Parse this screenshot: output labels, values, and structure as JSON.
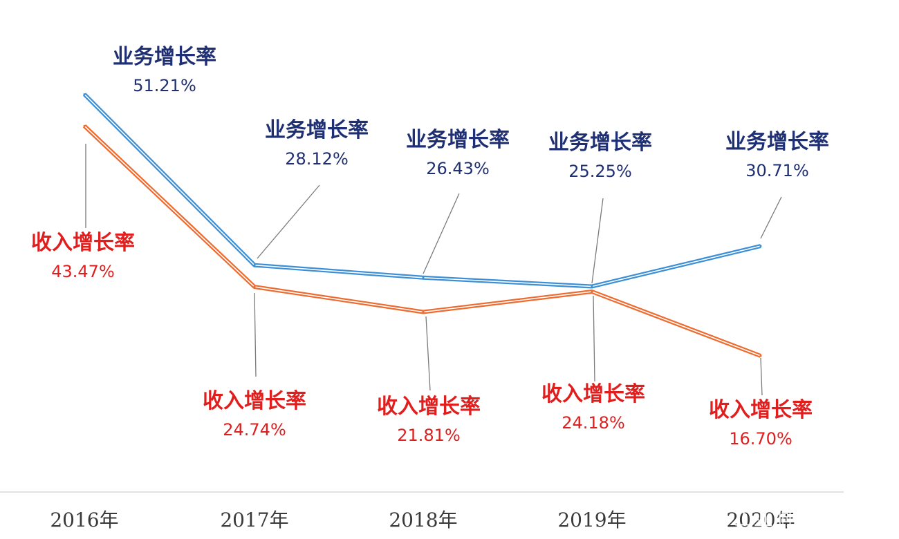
{
  "chart_data": {
    "type": "line",
    "categories": [
      "2016年",
      "2017年",
      "2018年",
      "2019年",
      "2020年"
    ],
    "series": [
      {
        "name": "业务增长率",
        "values": [
          51.21,
          28.12,
          26.43,
          25.25,
          30.71
        ],
        "value_labels": [
          "51.21%",
          "28.12%",
          "26.43%",
          "25.25%",
          "30.71%"
        ],
        "color": "#3b8fd6",
        "label_color": "#1f2f73"
      },
      {
        "name": "收入增长率",
        "values": [
          43.47,
          24.74,
          21.81,
          24.18,
          16.7
        ],
        "value_labels": [
          "43.47%",
          "24.74%",
          "21.81%",
          "24.18%",
          "16.70%"
        ],
        "color": "#ee6b2f",
        "label_color": "#e01e1e"
      }
    ],
    "grid": false,
    "legend": "none"
  },
  "watermark": "风闻 ·· 工业洞察"
}
